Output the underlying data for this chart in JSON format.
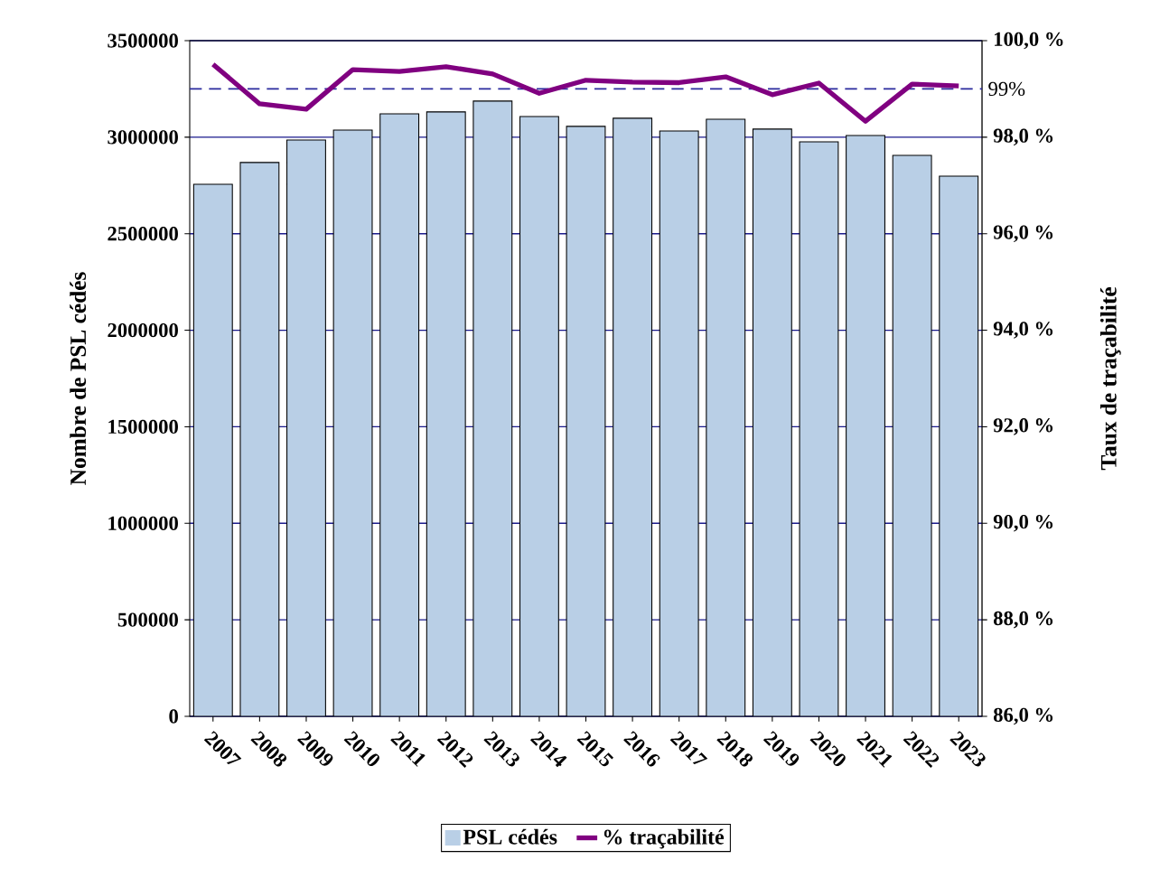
{
  "chart_data": {
    "type": "bar",
    "xlabel": null,
    "ylabel": "Nombre de PSL cédés",
    "y2label": "Taux de traçabilité",
    "categories": [
      "2007",
      "2008",
      "2009",
      "2010",
      "2011",
      "2012",
      "2013",
      "2014",
      "2015",
      "2016",
      "2017",
      "2018",
      "2019",
      "2020",
      "2021",
      "2022",
      "2023"
    ],
    "series": [
      {
        "name": "PSL cédés",
        "type": "bar",
        "color": "#b9cfe6",
        "values": [
          2756000,
          2869000,
          2985000,
          3037000,
          3121000,
          3131000,
          3187000,
          3107000,
          3056000,
          3098000,
          3032000,
          3093000,
          3042000,
          2976000,
          3009000,
          2906000,
          2798000
        ]
      },
      {
        "name": "% traçabilité",
        "type": "line",
        "axis": "y2",
        "color": "#800080",
        "values": [
          99.51,
          98.69,
          98.58,
          99.4,
          99.36,
          99.46,
          99.31,
          98.91,
          99.18,
          99.14,
          99.13,
          99.25,
          98.88,
          99.12,
          98.33,
          99.1,
          99.06
        ]
      }
    ],
    "ylim": [
      0,
      3500000
    ],
    "yticks": [
      0,
      500000,
      1000000,
      1500000,
      2000000,
      2500000,
      3000000,
      3500000
    ],
    "y2lim": [
      86,
      100
    ],
    "y2ticks": [
      {
        "value": 86,
        "label": "86,0 %"
      },
      {
        "value": 88,
        "label": "88,0 %"
      },
      {
        "value": 90,
        "label": "90,0 %"
      },
      {
        "value": 92,
        "label": "92,0 %"
      },
      {
        "value": 94,
        "label": "94,0 %"
      },
      {
        "value": 96,
        "label": "96,0 %"
      },
      {
        "value": 98,
        "label": "98,0 %"
      },
      {
        "value": 100,
        "label": "100,0 %"
      }
    ],
    "ref_lines": [
      {
        "axis": "y2",
        "value": 99,
        "label": "99%",
        "color": "#2b2b9e",
        "line_style": "dashed"
      }
    ],
    "grid": "y",
    "legend": "bottom",
    "marker": "none"
  }
}
